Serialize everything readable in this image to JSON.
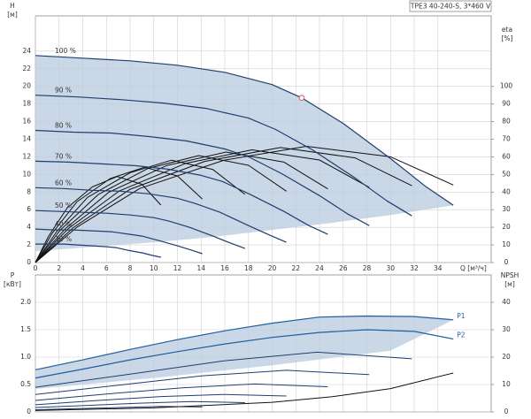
{
  "chart_data": [
    {
      "type": "line",
      "title": "TPE3 40-240-S, 3*460 V",
      "y_label": "H",
      "y_unit": "[м]",
      "y2_label": "eta",
      "y2_unit": "[%]",
      "x_label": "Q [м³/ч]",
      "xlim": [
        0,
        38.5
      ],
      "ylim": [
        0,
        28
      ],
      "y2lim": [
        0,
        140
      ],
      "xticks": [
        0,
        2,
        4,
        6,
        8,
        10,
        12,
        14,
        16,
        18,
        20,
        22,
        24,
        26,
        28,
        30,
        32,
        34
      ],
      "yticks": [
        0,
        2,
        4,
        6,
        8,
        10,
        12,
        14,
        16,
        18,
        20,
        22,
        24
      ],
      "y2ticks": [
        0,
        10,
        20,
        30,
        40,
        50,
        60,
        70,
        80,
        90,
        100
      ],
      "grid": true,
      "area": {
        "color": "#bccde0",
        "x": [
          0,
          4,
          8,
          12,
          16,
          20,
          22.5,
          26,
          30,
          33,
          35.3,
          30,
          25,
          20,
          15,
          10,
          5,
          2,
          0
        ],
        "values": [
          23.5,
          23.2,
          22.9,
          22.4,
          21.6,
          20.2,
          18.7,
          15.8,
          11.8,
          8.6,
          6.5,
          5.4,
          4.5,
          3.7,
          2.9,
          2.3,
          1.8,
          1.5,
          1.3
        ]
      },
      "series": [
        {
          "name": "100 %",
          "color": "#1f3f6e",
          "x": [
            0,
            4,
            8,
            12,
            16,
            20,
            22.5,
            26,
            30,
            33,
            35.3
          ],
          "values": [
            23.5,
            23.2,
            22.9,
            22.4,
            21.6,
            20.2,
            18.7,
            15.8,
            11.8,
            8.6,
            6.5
          ]
        },
        {
          "name": "90 %",
          "color": "#1f3f6e",
          "x": [
            0,
            3.6,
            7.2,
            10.8,
            14.4,
            18,
            20.3,
            23.4,
            27,
            29.7,
            31.8
          ],
          "values": [
            19.0,
            18.8,
            18.5,
            18.1,
            17.5,
            16.4,
            15.1,
            12.8,
            9.6,
            7.0,
            5.3
          ]
        },
        {
          "name": "80 %",
          "color": "#1f3f6e",
          "x": [
            0,
            3.2,
            6.4,
            9.6,
            12.8,
            16,
            18,
            20.8,
            24,
            26.4,
            28.2
          ],
          "values": [
            15.0,
            14.8,
            14.7,
            14.3,
            13.8,
            12.9,
            12.0,
            10.1,
            7.6,
            5.5,
            4.2
          ]
        },
        {
          "name": "70 %",
          "color": "#1f3f6e",
          "x": [
            0,
            2.8,
            5.6,
            8.4,
            11.2,
            14,
            15.8,
            18.2,
            21,
            23.1,
            24.7
          ],
          "values": [
            11.5,
            11.4,
            11.2,
            11.0,
            10.6,
            9.9,
            9.2,
            7.7,
            5.8,
            4.2,
            3.2
          ]
        },
        {
          "name": "60 %",
          "color": "#1f3f6e",
          "x": [
            0,
            2.4,
            4.8,
            7.2,
            9.6,
            12,
            13.5,
            15.6,
            18,
            19.8,
            21.2
          ],
          "values": [
            8.5,
            8.4,
            8.2,
            8.1,
            7.8,
            7.3,
            6.7,
            5.7,
            4.2,
            3.1,
            2.3
          ]
        },
        {
          "name": "50 %",
          "color": "#1f3f6e",
          "x": [
            0,
            2,
            4,
            6,
            8,
            10,
            11.3,
            13,
            15,
            16.5,
            17.7
          ],
          "values": [
            5.9,
            5.8,
            5.7,
            5.6,
            5.4,
            5.1,
            4.7,
            4.0,
            3.0,
            2.2,
            1.6
          ]
        },
        {
          "name": "40 %",
          "color": "#1f3f6e",
          "x": [
            0,
            1.6,
            3.2,
            4.8,
            6.4,
            8,
            9,
            10.4,
            12,
            13.2,
            14.1
          ],
          "values": [
            3.8,
            3.7,
            3.7,
            3.6,
            3.5,
            3.2,
            3.0,
            2.5,
            1.9,
            1.4,
            1.0
          ]
        },
        {
          "name": "30 %",
          "color": "#1f3f6e",
          "x": [
            0,
            1.2,
            2.4,
            3.6,
            4.8,
            6,
            6.8,
            7.8,
            9,
            9.9,
            10.6
          ],
          "values": [
            2.1,
            2.1,
            2.1,
            2.0,
            1.9,
            1.8,
            1.7,
            1.4,
            1.1,
            0.8,
            0.6
          ]
        }
      ],
      "eta_curves": [
        {
          "axis": "y2",
          "color": "#111111",
          "x": [
            0,
            3.5,
            8.8,
            15.9,
            22.9,
            30,
            35.3
          ],
          "values": [
            0,
            20,
            42,
            58,
            66,
            60,
            44
          ]
        },
        {
          "axis": "y2",
          "color": "#111111",
          "x": [
            0,
            3.2,
            8,
            14.3,
            20.7,
            27,
            31.8
          ],
          "values": [
            0,
            19.8,
            41.6,
            57.4,
            65.3,
            59.4,
            43.6
          ]
        },
        {
          "axis": "y2",
          "color": "#111111",
          "x": [
            0,
            2.8,
            7.1,
            12.7,
            18.3,
            24,
            28.2
          ],
          "values": [
            0,
            19.4,
            40.7,
            56.3,
            64,
            58.2,
            42.7
          ]
        },
        {
          "axis": "y2",
          "color": "#111111",
          "x": [
            0,
            2.5,
            6.2,
            11.1,
            16.1,
            21,
            24.7
          ],
          "values": [
            0,
            19,
            39.9,
            55.1,
            62.7,
            57,
            41.8
          ]
        },
        {
          "axis": "y2",
          "color": "#111111",
          "x": [
            0,
            2.1,
            5.3,
            9.5,
            13.8,
            18,
            21.2
          ],
          "values": [
            0,
            18.4,
            38.6,
            53.4,
            60.7,
            55.2,
            40.5
          ]
        },
        {
          "axis": "y2",
          "color": "#111111",
          "x": [
            0,
            1.8,
            4.4,
            8,
            11.5,
            15,
            17.7
          ],
          "values": [
            0,
            17.6,
            37,
            51,
            58.1,
            52.8,
            38.7
          ]
        },
        {
          "axis": "y2",
          "color": "#111111",
          "x": [
            0,
            1.4,
            3.5,
            6.3,
            9.2,
            12,
            14.1
          ],
          "values": [
            0,
            16.4,
            34.4,
            47.6,
            54.1,
            49.2,
            36.1
          ]
        },
        {
          "axis": "y2",
          "color": "#111111",
          "x": [
            0,
            1.1,
            2.7,
            4.8,
            6.9,
            9,
            10.6
          ],
          "values": [
            0,
            14.8,
            31.1,
            42.9,
            48.8,
            44.4,
            32.6
          ]
        }
      ],
      "duty_point": {
        "x": 22.5,
        "y": 18.7,
        "color": "#d9534f"
      }
    },
    {
      "type": "line",
      "y_label": "P",
      "y_unit": "[кВт]",
      "y2_label": "NPSH",
      "y2_unit": "[м]",
      "xlim": [
        0,
        38.5
      ],
      "ylim": [
        0,
        2.5
      ],
      "y2lim": [
        0,
        50
      ],
      "xticks": [
        0,
        2,
        4,
        6,
        8,
        10,
        12,
        14,
        16,
        18,
        20,
        22,
        24,
        26,
        28,
        30,
        32,
        34
      ],
      "yticks": [
        0,
        0.5,
        {
          "value": 1,
          "label": "1.0"
        },
        1.5,
        {
          "value": 2,
          "label": "2.0"
        }
      ],
      "y2ticks": [
        0,
        10,
        20,
        30,
        40
      ],
      "grid": true,
      "area": {
        "color": "#bccde0",
        "x": [
          0,
          4,
          8,
          12,
          16,
          20,
          24,
          28,
          32,
          35.3,
          30,
          20,
          10,
          0
        ],
        "values": [
          0.77,
          0.95,
          1.14,
          1.32,
          1.48,
          1.62,
          1.73,
          1.75,
          1.74,
          1.68,
          1.12,
          0.85,
          0.62,
          0.42
        ]
      },
      "series": [
        {
          "name": "P1",
          "color": "#1f5f9e",
          "x": [
            0,
            4,
            8,
            12,
            16,
            20,
            24,
            28,
            32,
            35.3
          ],
          "values": [
            0.77,
            0.95,
            1.14,
            1.32,
            1.48,
            1.62,
            1.73,
            1.75,
            1.74,
            1.68
          ]
        },
        {
          "name": "P2",
          "color": "#1f5f9e",
          "x": [
            0,
            4,
            8,
            12,
            16,
            20,
            24,
            28,
            32,
            35.3
          ],
          "values": [
            0.62,
            0.78,
            0.95,
            1.1,
            1.24,
            1.36,
            1.45,
            1.5,
            1.47,
            1.33
          ]
        }
      ],
      "power_curves": [
        {
          "color": "#1f3f6e",
          "x": [
            0,
            8,
            15.9,
            23.8,
            31.8
          ],
          "values": [
            0.45,
            0.69,
            0.93,
            1.09,
            0.97
          ]
        },
        {
          "color": "#1f3f6e",
          "x": [
            0,
            7.1,
            14.1,
            21.2,
            28.2
          ],
          "values": [
            0.32,
            0.49,
            0.66,
            0.76,
            0.68
          ]
        },
        {
          "color": "#1f3f6e",
          "x": [
            0,
            6.2,
            12.4,
            18.5,
            24.7
          ],
          "values": [
            0.21,
            0.33,
            0.44,
            0.51,
            0.46
          ]
        },
        {
          "color": "#1f3f6e",
          "x": [
            0,
            5.3,
            10.6,
            15.9,
            21.2
          ],
          "values": [
            0.13,
            0.21,
            0.28,
            0.32,
            0.29
          ]
        },
        {
          "color": "#1f3f6e",
          "x": [
            0,
            4.4,
            8.8,
            13.2,
            17.7
          ],
          "values": [
            0.08,
            0.12,
            0.16,
            0.19,
            0.17
          ]
        },
        {
          "color": "#1f3f6e",
          "x": [
            0,
            3.5,
            7.1,
            10.6,
            14.1
          ],
          "values": [
            0.04,
            0.06,
            0.08,
            0.1,
            0.09
          ]
        }
      ],
      "npsh": {
        "axis": "y2",
        "color": "#111111",
        "x": [
          0,
          10,
          20,
          25,
          30,
          35.3
        ],
        "values": [
          0.5,
          1.5,
          3.5,
          5.5,
          8.5,
          14.2
        ]
      }
    }
  ]
}
